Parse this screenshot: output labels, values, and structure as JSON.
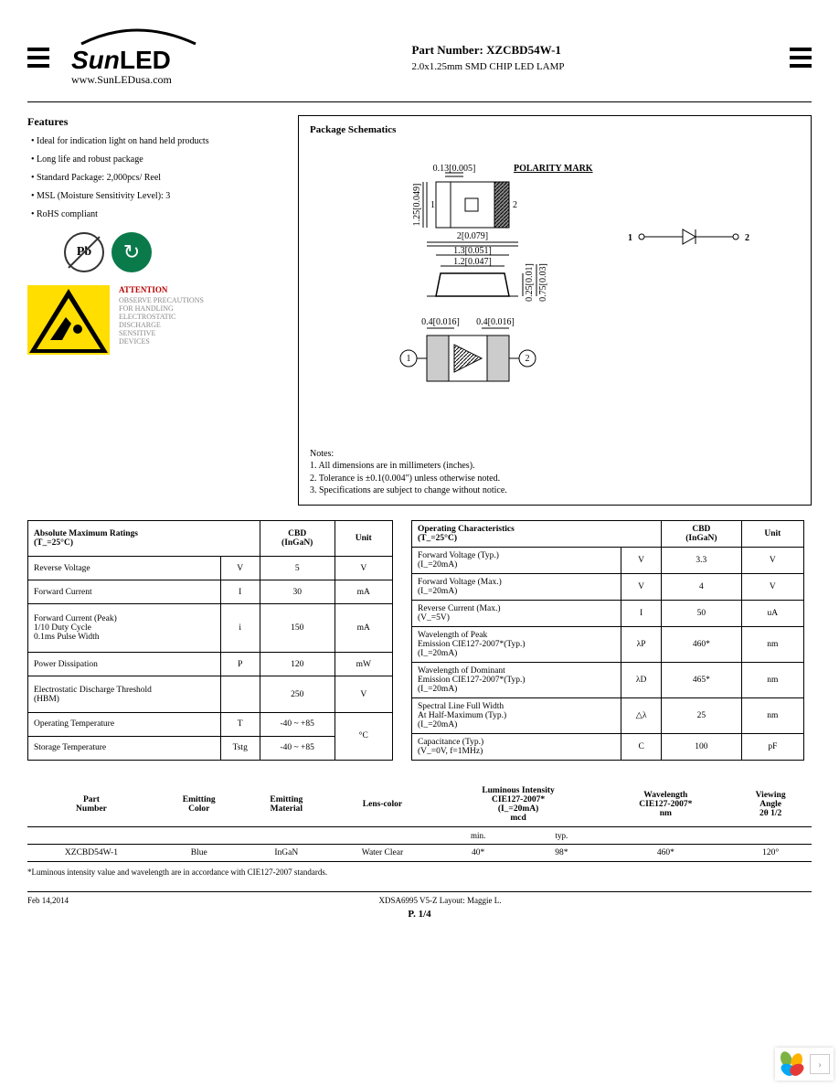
{
  "header": {
    "logo_text_1": "Sun",
    "logo_text_2": "LED",
    "url": "www.SunLEDusa.com",
    "part_label": "Part Number:",
    "part_number": "XZCBD54W-1",
    "description": "2.0x1.25mm SMD CHIP LED LAMP"
  },
  "features": {
    "title": "Features",
    "items": [
      "Ideal for indication light on hand held products",
      "Long life and robust package",
      "Standard Package: 2,000pcs/ Reel",
      "MSL (Moisture Sensitivity Level): 3",
      "RoHS compliant"
    ]
  },
  "esd": {
    "attention": "ATTENTION",
    "lines": [
      "OBSERVE PRECAUTIONS",
      "FOR HANDLING",
      "ELECTROSTATIC",
      "DISCHARGE",
      "SENSITIVE",
      "DEVICES"
    ]
  },
  "schematic": {
    "title": "Package Schematics",
    "dims": {
      "top_thick": "0.13[0.005]",
      "polarity": "POLARITY MARK",
      "height": "1.25[0.049]",
      "pin1": "1",
      "pin2": "2",
      "width": "2[0.079]",
      "inner1": "1.3[0.051]",
      "inner2": "1.2[0.047]",
      "side1": "0.25[0.01]",
      "side2": "0.75[0.03]",
      "pad": "0.4[0.016]"
    },
    "notes_title": "Notes:",
    "notes": [
      "1. All dimensions are in millimeters (inches).",
      "2. Tolerance is ±0.1(0.004\") unless otherwise noted.",
      "3. Specifications are subject to change without notice."
    ]
  },
  "abs_max": {
    "title": "Absolute Maximum Ratings",
    "cond": "(T_=25°C)",
    "col_cbd": "CBD",
    "col_mat": "(InGaN)",
    "col_unit": "Unit",
    "rows": [
      {
        "param": "Reverse Voltage",
        "sym": "V",
        "val": "5",
        "unit": "V"
      },
      {
        "param": "Forward Current",
        "sym": "I",
        "val": "30",
        "unit": "mA"
      },
      {
        "param": "Forward Current (Peak)\n1/10 Duty Cycle\n0.1ms Pulse Width",
        "sym": "i",
        "val": "150",
        "unit": "mA"
      },
      {
        "param": "Power Dissipation",
        "sym": "P",
        "val": "120",
        "unit": "mW"
      },
      {
        "param": "Electrostatic Discharge Threshold\n(HBM)",
        "sym": "",
        "val": "250",
        "unit": "V"
      },
      {
        "param": "Operating Temperature",
        "sym": "T",
        "val": "-40 ~ +85",
        "unit": "°C"
      },
      {
        "param": "Storage Temperature",
        "sym": "Tstg",
        "val": "-40 ~ +85",
        "unit": ""
      }
    ]
  },
  "op_char": {
    "title": "Operating Characteristics",
    "cond": "(T_=25°C)",
    "col_cbd": "CBD",
    "col_mat": "(InGaN)",
    "col_unit": "Unit",
    "rows": [
      {
        "param": "Forward Voltage (Typ.)\n(I_=20mA)",
        "sym": "V",
        "val": "3.3",
        "unit": "V"
      },
      {
        "param": "Forward Voltage (Max.)\n(I_=20mA)",
        "sym": "V",
        "val": "4",
        "unit": "V"
      },
      {
        "param": "Reverse Current (Max.)\n(V_=5V)",
        "sym": "I",
        "val": "50",
        "unit": "uA"
      },
      {
        "param": "Wavelength of Peak\nEmission  CIE127-2007*(Typ.)\n(I_=20mA)",
        "sym": "λP",
        "val": "460*",
        "unit": "nm"
      },
      {
        "param": "Wavelength of Dominant\nEmission  CIE127-2007*(Typ.)\n(I_=20mA)",
        "sym": "λD",
        "val": "465*",
        "unit": "nm"
      },
      {
        "param": "Spectral Line Full Width\nAt Half-Maximum (Typ.)\n(I_=20mA)",
        "sym": "△λ",
        "val": "25",
        "unit": "nm"
      },
      {
        "param": "Capacitance (Typ.)\n(V_=0V, f=1MHz)",
        "sym": "C",
        "val": "100",
        "unit": "pF"
      }
    ]
  },
  "summary": {
    "headers": [
      "Part\nNumber",
      "Emitting\nColor",
      "Emitting\nMaterial",
      "Lens-color",
      "Luminous Intensity\nCIE127-2007*\n(I_=20mA)\nmcd",
      "Wavelength\nCIE127-2007*\nnm",
      "Viewing\nAngle\n2θ 1/2"
    ],
    "sub": [
      "",
      "",
      "",
      "",
      "min.",
      "typ.",
      "",
      ""
    ],
    "row": [
      "XZCBD54W-1",
      "Blue",
      "InGaN",
      "Water    Clear",
      "40*",
      "98*",
      "460*",
      "120°"
    ]
  },
  "footnote": "*Luminous intensity value and wavelength are in accordance with CIE127-2007 standards.",
  "footer": {
    "date": "Feb 14,2014",
    "doc": "XDSA6995    V5-Z   Layout: Maggie L.",
    "page": "P. 1/4"
  }
}
